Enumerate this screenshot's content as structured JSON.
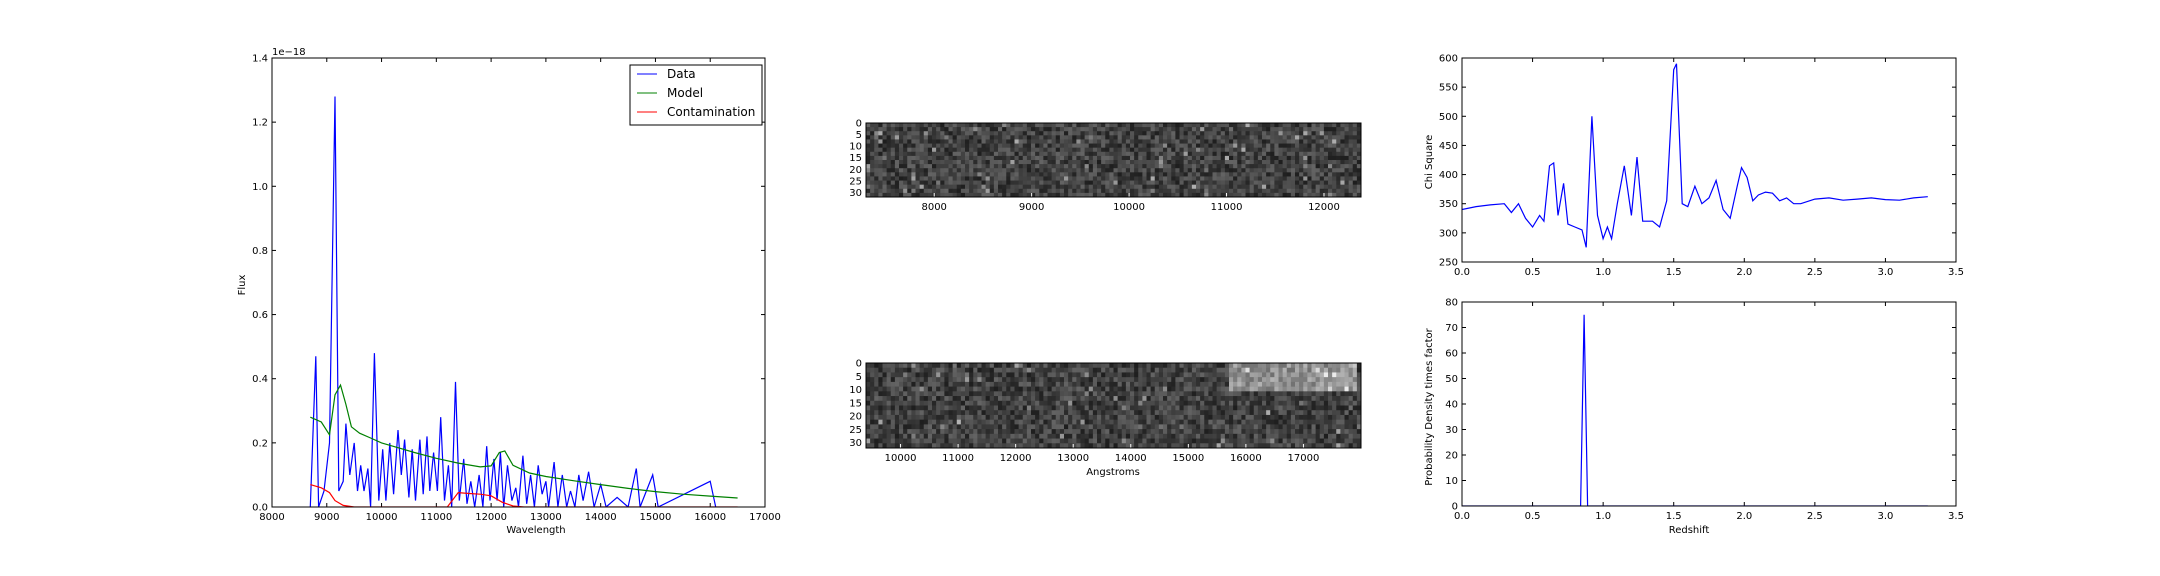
{
  "chart_data": [
    {
      "type": "line",
      "xlabel": "Wavelength",
      "ylabel": "Flux",
      "offset_text": "1e−18",
      "xlim": [
        8000,
        17000
      ],
      "ylim": [
        0.0,
        1.4
      ],
      "xticks": [
        8000,
        9000,
        10000,
        11000,
        12000,
        13000,
        14000,
        15000,
        16000,
        17000
      ],
      "yticks": [
        0.0,
        0.2,
        0.4,
        0.6,
        0.8,
        1.0,
        1.2,
        1.4
      ],
      "legend": "upper right",
      "series": [
        {
          "name": "Data",
          "color": "#0000ff",
          "points": [
            [
              8700,
              0.0
            ],
            [
              8800,
              0.47
            ],
            [
              8850,
              0.0
            ],
            [
              8950,
              0.05
            ],
            [
              9050,
              0.2
            ],
            [
              9150,
              1.28
            ],
            [
              9220,
              0.05
            ],
            [
              9300,
              0.08
            ],
            [
              9350,
              0.26
            ],
            [
              9420,
              0.1
            ],
            [
              9500,
              0.2
            ],
            [
              9560,
              0.05
            ],
            [
              9620,
              0.13
            ],
            [
              9680,
              0.05
            ],
            [
              9750,
              0.12
            ],
            [
              9800,
              0.0
            ],
            [
              9870,
              0.48
            ],
            [
              9950,
              0.02
            ],
            [
              10020,
              0.18
            ],
            [
              10080,
              0.02
            ],
            [
              10150,
              0.2
            ],
            [
              10220,
              0.04
            ],
            [
              10300,
              0.24
            ],
            [
              10360,
              0.1
            ],
            [
              10420,
              0.21
            ],
            [
              10500,
              0.03
            ],
            [
              10560,
              0.18
            ],
            [
              10620,
              0.02
            ],
            [
              10700,
              0.21
            ],
            [
              10760,
              0.04
            ],
            [
              10830,
              0.22
            ],
            [
              10880,
              0.05
            ],
            [
              10950,
              0.17
            ],
            [
              11020,
              0.05
            ],
            [
              11080,
              0.28
            ],
            [
              11150,
              0.02
            ],
            [
              11220,
              0.13
            ],
            [
              11280,
              0.0
            ],
            [
              11350,
              0.39
            ],
            [
              11420,
              0.02
            ],
            [
              11500,
              0.15
            ],
            [
              11560,
              0.01
            ],
            [
              11630,
              0.08
            ],
            [
              11700,
              0.0
            ],
            [
              11780,
              0.1
            ],
            [
              11850,
              0.0
            ],
            [
              11920,
              0.19
            ],
            [
              11980,
              0.02
            ],
            [
              12050,
              0.15
            ],
            [
              12110,
              0.02
            ],
            [
              12170,
              0.17
            ],
            [
              12230,
              0.0
            ],
            [
              12300,
              0.13
            ],
            [
              12380,
              0.02
            ],
            [
              12450,
              0.06
            ],
            [
              12500,
              0.0
            ],
            [
              12580,
              0.16
            ],
            [
              12650,
              0.01
            ],
            [
              12720,
              0.1
            ],
            [
              12790,
              0.0
            ],
            [
              12860,
              0.13
            ],
            [
              12930,
              0.04
            ],
            [
              13000,
              0.08
            ],
            [
              13050,
              0.0
            ],
            [
              13150,
              0.14
            ],
            [
              13220,
              0.0
            ],
            [
              13300,
              0.1
            ],
            [
              13380,
              0.0
            ],
            [
              13450,
              0.05
            ],
            [
              13530,
              0.0
            ],
            [
              13600,
              0.1
            ],
            [
              13680,
              0.02
            ],
            [
              13780,
              0.11
            ],
            [
              13880,
              0.0
            ],
            [
              14000,
              0.07
            ],
            [
              14100,
              0.0
            ],
            [
              14300,
              0.03
            ],
            [
              14500,
              0.0
            ],
            [
              14650,
              0.12
            ],
            [
              14720,
              0.0
            ],
            [
              14950,
              0.1
            ],
            [
              15050,
              0.0
            ],
            [
              16000,
              0.08
            ],
            [
              16100,
              0.0
            ]
          ]
        },
        {
          "name": "Model",
          "color": "#008000",
          "points": [
            [
              8700,
              0.28
            ],
            [
              8900,
              0.265
            ],
            [
              9050,
              0.225
            ],
            [
              9150,
              0.35
            ],
            [
              9250,
              0.38
            ],
            [
              9350,
              0.32
            ],
            [
              9450,
              0.25
            ],
            [
              9600,
              0.23
            ],
            [
              9800,
              0.215
            ],
            [
              10000,
              0.2
            ],
            [
              10300,
              0.185
            ],
            [
              10600,
              0.17
            ],
            [
              11000,
              0.152
            ],
            [
              11400,
              0.137
            ],
            [
              11800,
              0.125
            ],
            [
              12000,
              0.128
            ],
            [
              12150,
              0.17
            ],
            [
              12250,
              0.175
            ],
            [
              12400,
              0.13
            ],
            [
              12700,
              0.106
            ],
            [
              13000,
              0.095
            ],
            [
              13500,
              0.082
            ],
            [
              14000,
              0.07
            ],
            [
              14500,
              0.058
            ],
            [
              15000,
              0.048
            ],
            [
              15500,
              0.04
            ],
            [
              16000,
              0.034
            ],
            [
              16500,
              0.028
            ]
          ]
        },
        {
          "name": "Contamination",
          "color": "#ff0000",
          "points": [
            [
              8700,
              0.07
            ],
            [
              8900,
              0.06
            ],
            [
              9050,
              0.045
            ],
            [
              9150,
              0.02
            ],
            [
              9300,
              0.005
            ],
            [
              9500,
              0.0
            ],
            [
              10000,
              0.0
            ],
            [
              11200,
              0.0
            ],
            [
              11400,
              0.045
            ],
            [
              11600,
              0.042
            ],
            [
              11800,
              0.04
            ],
            [
              12000,
              0.035
            ],
            [
              12200,
              0.015
            ],
            [
              12400,
              0.003
            ],
            [
              12600,
              0.0
            ],
            [
              16500,
              0.0
            ]
          ]
        }
      ]
    },
    {
      "type": "heatmap",
      "xticks": [
        8000,
        9000,
        10000,
        11000,
        12000
      ],
      "yticks": [
        0,
        5,
        10,
        15,
        20,
        25,
        30
      ],
      "xlim": [
        7300,
        12380
      ],
      "ylim": [
        32,
        0
      ]
    },
    {
      "type": "heatmap",
      "xlabel": "Angstroms",
      "xticks": [
        10000,
        11000,
        12000,
        13000,
        14000,
        15000,
        16000,
        17000
      ],
      "yticks": [
        0,
        5,
        10,
        15,
        20,
        25,
        30
      ],
      "xlim": [
        9400,
        18000
      ],
      "ylim": [
        32,
        0
      ]
    },
    {
      "type": "line",
      "ylabel": "Chi Square",
      "xlim": [
        0.0,
        3.5
      ],
      "ylim": [
        250,
        600
      ],
      "xticks": [
        0.0,
        0.5,
        1.0,
        1.5,
        2.0,
        2.5,
        3.0,
        3.5
      ],
      "yticks": [
        250,
        300,
        350,
        400,
        450,
        500,
        550,
        600
      ],
      "series": [
        {
          "color": "#0000ff",
          "points": [
            [
              0.0,
              340
            ],
            [
              0.1,
              345
            ],
            [
              0.2,
              348
            ],
            [
              0.3,
              350
            ],
            [
              0.35,
              335
            ],
            [
              0.4,
              350
            ],
            [
              0.45,
              325
            ],
            [
              0.5,
              310
            ],
            [
              0.55,
              330
            ],
            [
              0.58,
              320
            ],
            [
              0.62,
              415
            ],
            [
              0.65,
              420
            ],
            [
              0.68,
              330
            ],
            [
              0.72,
              385
            ],
            [
              0.75,
              315
            ],
            [
              0.8,
              310
            ],
            [
              0.85,
              305
            ],
            [
              0.88,
              275
            ],
            [
              0.92,
              500
            ],
            [
              0.96,
              330
            ],
            [
              1.0,
              290
            ],
            [
              1.03,
              310
            ],
            [
              1.06,
              290
            ],
            [
              1.1,
              350
            ],
            [
              1.15,
              415
            ],
            [
              1.2,
              330
            ],
            [
              1.24,
              430
            ],
            [
              1.28,
              320
            ],
            [
              1.35,
              320
            ],
            [
              1.4,
              310
            ],
            [
              1.45,
              355
            ],
            [
              1.5,
              580
            ],
            [
              1.52,
              590
            ],
            [
              1.56,
              350
            ],
            [
              1.6,
              345
            ],
            [
              1.65,
              380
            ],
            [
              1.7,
              350
            ],
            [
              1.75,
              360
            ],
            [
              1.8,
              390
            ],
            [
              1.85,
              340
            ],
            [
              1.9,
              325
            ],
            [
              1.95,
              380
            ],
            [
              1.98,
              412
            ],
            [
              2.02,
              395
            ],
            [
              2.06,
              355
            ],
            [
              2.1,
              365
            ],
            [
              2.15,
              370
            ],
            [
              2.2,
              368
            ],
            [
              2.25,
              355
            ],
            [
              2.3,
              360
            ],
            [
              2.35,
              350
            ],
            [
              2.4,
              350
            ],
            [
              2.5,
              358
            ],
            [
              2.6,
              360
            ],
            [
              2.7,
              356
            ],
            [
              2.8,
              358
            ],
            [
              2.9,
              360
            ],
            [
              3.0,
              357
            ],
            [
              3.1,
              356
            ],
            [
              3.2,
              360
            ],
            [
              3.3,
              362
            ]
          ]
        }
      ]
    },
    {
      "type": "line",
      "xlabel": "Redshift",
      "ylabel": "Probability Density times factor",
      "xlim": [
        0.0,
        3.5
      ],
      "ylim": [
        0,
        80
      ],
      "xticks": [
        0.0,
        0.5,
        1.0,
        1.5,
        2.0,
        2.5,
        3.0,
        3.5
      ],
      "yticks": [
        0,
        10,
        20,
        30,
        40,
        50,
        60,
        70,
        80
      ],
      "series": [
        {
          "color": "#0000ff",
          "points": [
            [
              0.0,
              0
            ],
            [
              0.84,
              0
            ],
            [
              0.865,
              75
            ],
            [
              0.89,
              0
            ],
            [
              3.3,
              0
            ]
          ]
        }
      ]
    }
  ]
}
